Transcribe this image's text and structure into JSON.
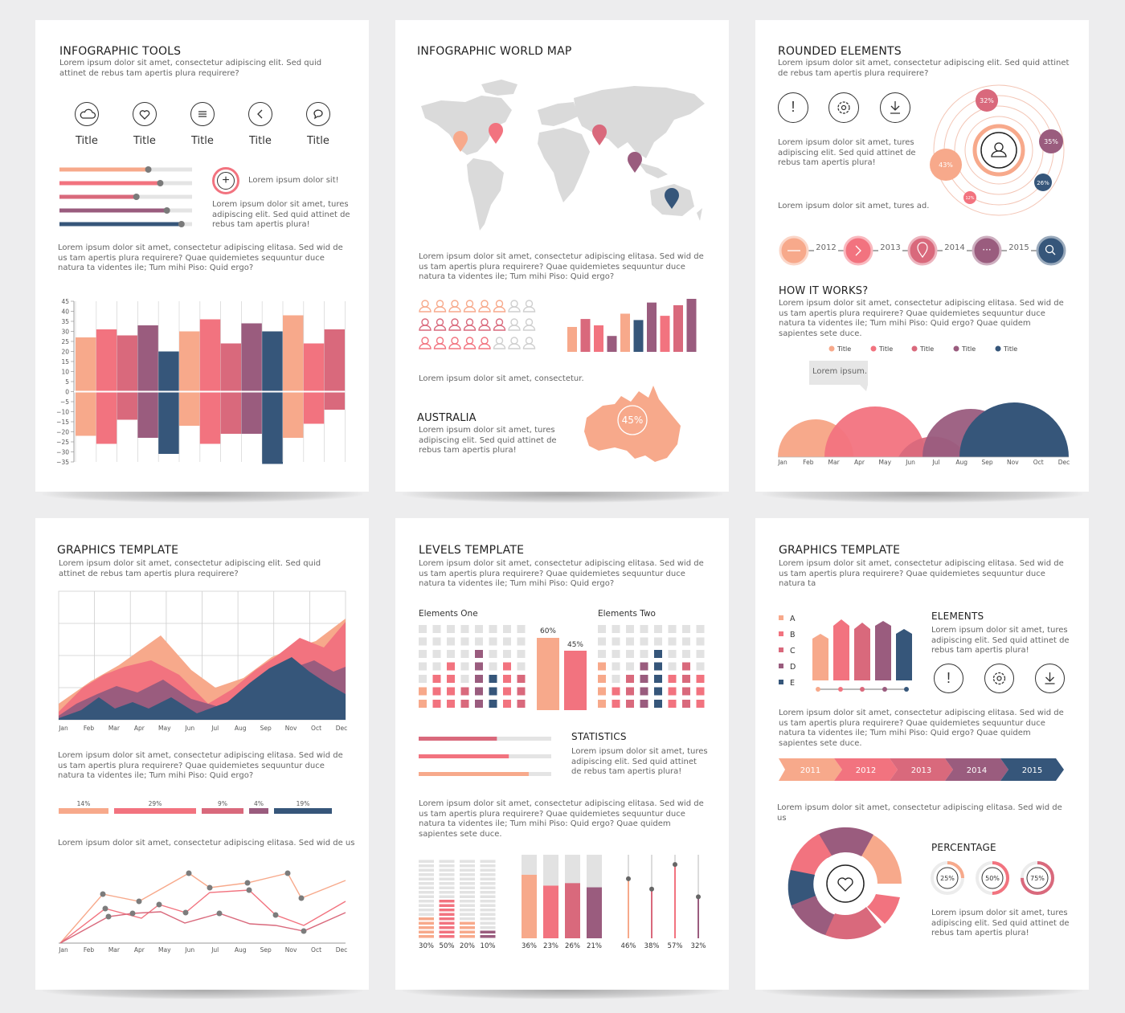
{
  "colors": {
    "peach": "#f7a98b",
    "coral": "#f2737f",
    "rose": "#d9697c",
    "plum": "#9a5c7e",
    "navy": "#36567a",
    "grey": "#dcdcdc",
    "map": "#dadada"
  },
  "cards": {
    "tools": {
      "title": "INFOGRAPHIC TOOLS",
      "intro": "Lorem ipsum dolor sit amet, consectetur adipiscing elit. Sed quid attinet de rebus tam apertis plura requirere?",
      "icons": [
        {
          "icon": "cloud-icon",
          "label": "Title"
        },
        {
          "icon": "heart-icon",
          "label": "Title"
        },
        {
          "icon": "menu-icon",
          "label": "Title"
        },
        {
          "icon": "back-icon",
          "label": "Title"
        },
        {
          "icon": "chat-icon",
          "label": "Title"
        }
      ],
      "sliders": [
        0.67,
        0.76,
        0.58,
        0.81,
        0.92
      ],
      "plus_text": "Lorem ipsum dolor sit!",
      "side_text": "Lorem ipsum dolor sit amet, tures adipiscing elit. Sed quid attinet de rebus tam apertis plura!",
      "body": "Lorem ipsum dolor sit amet, consectetur adipiscing elitasa. Sed wid de us tam apertis plura requirere? Quae quidemietes sequuntur duce natura ta videntes ile; Tum mihi Piso: Quid ergo?",
      "bar_chart": {
        "ticks": [
          "45",
          "40",
          "35",
          "30",
          "25",
          "20",
          "15",
          "10",
          "5",
          "0",
          "−5",
          "−10",
          "−15",
          "−20",
          "−25",
          "−30",
          "−35"
        ],
        "bars": [
          [
            27,
            -22
          ],
          [
            31,
            -26
          ],
          [
            28,
            -14
          ],
          [
            33,
            -23
          ],
          [
            20,
            -31
          ],
          [
            30,
            -17
          ],
          [
            36,
            -26
          ],
          [
            24,
            -21
          ],
          [
            34,
            -21
          ],
          [
            30,
            -36
          ],
          [
            38,
            -23
          ],
          [
            24,
            -16
          ],
          [
            31,
            -9
          ]
        ]
      }
    },
    "map": {
      "title": "INFOGRAPHIC WORLD MAP",
      "body": "Lorem ipsum dolor sit amet, consectetur adipiscing elitasa. Sed wid de us tam apertis plura requirere? Quae quidemietes sequuntur duce natura ta videntes ile; Tum mihi Piso: Quid ergo?",
      "people_rows": [
        6,
        6,
        5
      ],
      "bars": [
        0.47,
        0.62,
        0.5,
        0.3,
        0.72,
        0.6,
        0.93,
        0.68,
        0.88,
        1.0
      ],
      "caption": "Lorem ipsum dolor sit amet, consectetur.",
      "australia_title": "AUSTRALIA",
      "australia_text": "Lorem ipsum dolor sit amet, tures adipiscing elit. Sed quid attinet de rebus tam apertis plura!",
      "australia_pct": "45%"
    },
    "rounded": {
      "title": "ROUNDED ELEMENTS",
      "intro": "Lorem ipsum dolor sit amet, consectetur adipiscing elit. Sed quid attinet de rebus tam apertis plura requirere?",
      "side_text": "Lorem ipsum dolor sit amet, tures adipiscing elit. Sed quid attinet de rebus tam apertis plura!",
      "short_text": "Lorem ipsum dolor sit amet, tures ad.",
      "orbit": [
        "32%",
        "35%",
        "43%",
        "26%",
        "12%"
      ],
      "years": [
        "2012",
        "2013",
        "2014",
        "2015"
      ],
      "how_title": "HOW IT WORKS?",
      "how_text": "Lorem ipsum dolor sit amet, consectetur adipiscing elitasa. Sed wid de us tam apertis plura requirere? Quae quidemietes sequuntur duce natura ta videntes ile; Tum mihi Piso: Quid ergo? Quae quidem sapientes sete duce.",
      "legend": [
        "Title",
        "Title",
        "Title",
        "Title",
        "Title"
      ],
      "bubble": "Lorem ipsum.",
      "months": [
        "Jan",
        "Feb",
        "Mar",
        "Apr",
        "May",
        "Jun",
        "Jul",
        "Aug",
        "Sep",
        "Nov",
        "Oct",
        "Dec"
      ]
    },
    "graphics1": {
      "title": "GRAPHICS TEMPLATE",
      "intro": "Lorem ipsum dolor sit amet, consectetur adipiscing elit. Sed quid attinet de rebus tam apertis plura requirere?",
      "months": [
        "Jan",
        "Feb",
        "Mar",
        "Apr",
        "May",
        "Jun",
        "Jul",
        "Aug",
        "Sep",
        "Nov",
        "Oct",
        "Dec"
      ],
      "body": "Lorem ipsum dolor sit amet, consectetur adipiscing elitasa. Sed wid de us tam apertis plura requirere? Quae quidemietes sequuntur duce natura ta videntes ile; Tum mihi Piso: Quid ergo?",
      "segments": [
        {
          "label": "14%",
          "value": 14
        },
        {
          "label": "29%",
          "value": 29
        },
        {
          "label": "9%",
          "value": 9
        },
        {
          "label": "4%",
          "value": 4
        },
        {
          "label": "19%",
          "value": 19
        }
      ],
      "line_caption": "Lorem ipsum dolor sit amet, consectetur adipiscing elitasa. Sed wid de us"
    },
    "levels": {
      "title": "LEVELS TEMPLATE",
      "intro": "Lorem ipsum dolor sit amet, consectetur adipiscing elitasa. Sed wid de us tam apertis plura requirere? Quae quidemietes sequuntur duce natura ta videntes ile; Tum mihi Piso: Quid ergo?",
      "one_label": "Elements One",
      "two_label": "Elements Two",
      "big_bars": [
        "60%",
        "45%"
      ],
      "stats_title": "STATISTICS",
      "stats_text": "Lorem ipsum dolor sit amet, tures adipiscing elit. Sed quid attinet de rebus tam apertis plura!",
      "stat_bars": [
        0.59,
        0.68,
        0.83
      ],
      "body": "Lorem ipsum dolor sit amet, consectetur adipiscing elitasa. Sed wid de us tam apertis plura requirere? Quae quidemietes sequuntur duce natura ta videntes ile; Tum mihi Piso: Quid ergo? Quae quidem sapientes sete duce.",
      "stack_pcts": [
        "30%",
        "50%",
        "20%",
        "10%"
      ],
      "fill_pcts": [
        "36%",
        "23%",
        "26%",
        "21%"
      ],
      "thermo_pcts": [
        "46%",
        "38%",
        "57%",
        "32%"
      ]
    },
    "graphics2": {
      "title": "GRAPHICS TEMPLATE",
      "intro": "Lorem ipsum dolor sit amet, consectetur adipiscing elitasa. Sed wid de us tam apertis plura requirere? Quae quidemietes sequuntur duce natura ta",
      "legend": [
        "A",
        "B",
        "C",
        "D",
        "E"
      ],
      "elements_title": "ELEMENTS",
      "elements_text": "Lorem ipsum dolor sit amet, tures adipiscing elit. Sed quid attinet de rebus tam apertis plura!",
      "body": "Lorem ipsum dolor sit amet, consectetur adipiscing elitasa. Sed wid de us tam apertis plura requirere? Quae quidemietes sequuntur duce natura ta videntes ile; Tum mihi Piso: Quid ergo? Quae quidem sapientes sete duce.",
      "years": [
        "2011",
        "2012",
        "2013",
        "2014",
        "2015"
      ],
      "caption": "Lorem ipsum dolor sit amet, consectetur adipiscing elitasa. Sed wid de us",
      "pct_title": "PERCENTAGE",
      "pcts": [
        {
          "label": "25%",
          "value": 0.25
        },
        {
          "label": "50%",
          "value": 0.5
        },
        {
          "label": "75%",
          "value": 0.75
        }
      ],
      "pct_text": "Lorem ipsum dolor sit amet, tures adipiscing elit. Sed quid attinet de rebus tam apertis plura!"
    }
  }
}
